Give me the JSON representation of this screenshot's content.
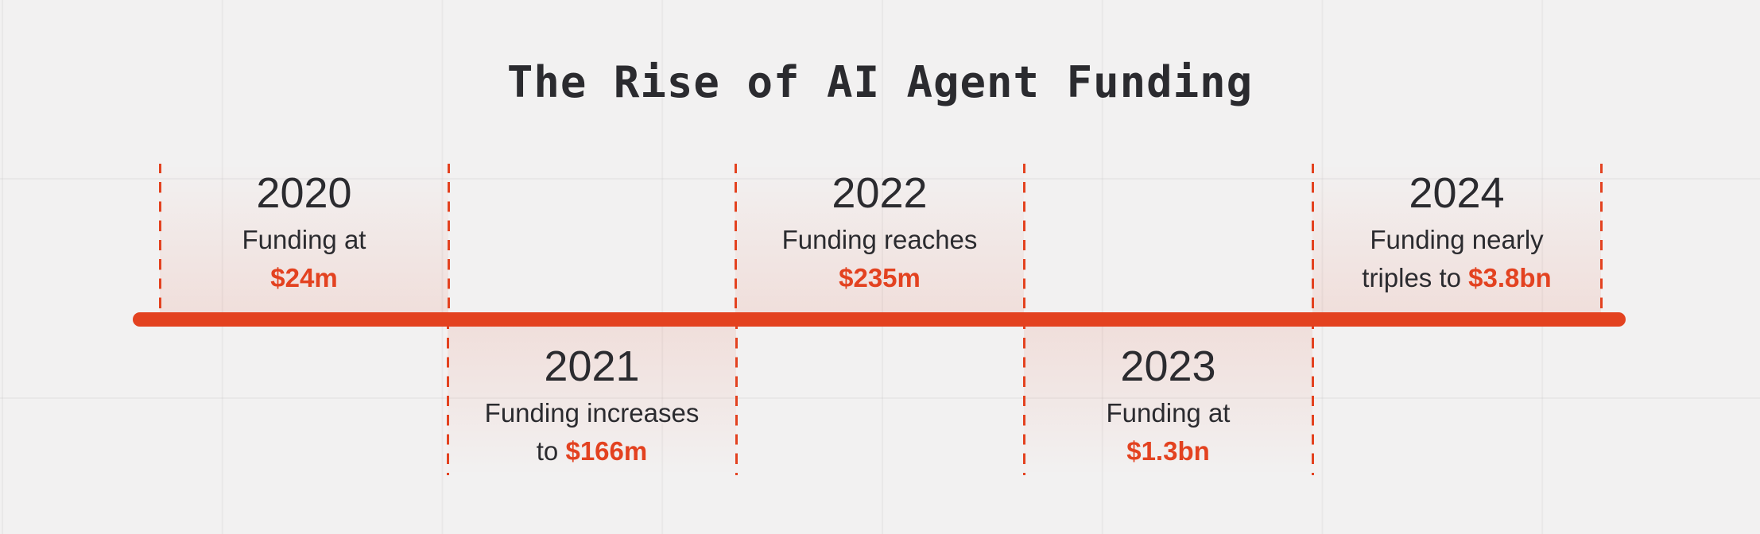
{
  "title": "The Rise of AI Agent Funding",
  "colors": {
    "accent": "#e34220",
    "text": "#2b2b2f",
    "background": "#f2f1f1"
  },
  "timeline": [
    {
      "year": "2020",
      "desc_pre": "Funding at",
      "desc_mid": "",
      "amount": "$24m",
      "position": "above"
    },
    {
      "year": "2021",
      "desc_pre": "Funding increases",
      "desc_mid": "to",
      "amount": "$166m",
      "position": "below"
    },
    {
      "year": "2022",
      "desc_pre": "Funding reaches",
      "desc_mid": "",
      "amount": "$235m",
      "position": "above"
    },
    {
      "year": "2023",
      "desc_pre": "Funding at",
      "desc_mid": "",
      "amount": "$1.3bn",
      "position": "below"
    },
    {
      "year": "2024",
      "desc_pre": "Funding nearly",
      "desc_mid": "triples to",
      "amount": "$3.8bn",
      "position": "above"
    }
  ]
}
